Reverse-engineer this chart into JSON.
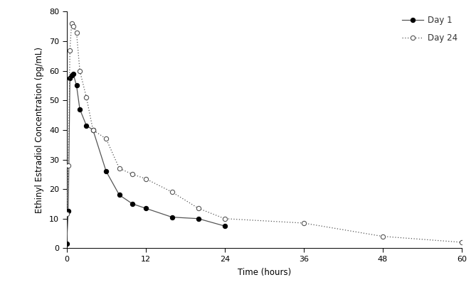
{
  "day1_x": [
    0,
    0.25,
    0.5,
    0.75,
    1.0,
    1.5,
    2.0,
    3.0,
    4.0,
    6.0,
    8.0,
    10.0,
    12.0,
    16.0,
    20.0,
    24.0
  ],
  "day1_y": [
    1.5,
    12.5,
    57.5,
    58.5,
    59.0,
    55.0,
    47.0,
    41.5,
    40.0,
    26.0,
    18.0,
    15.0,
    13.5,
    10.5,
    10.0,
    7.5
  ],
  "day24_x": [
    0,
    0.25,
    0.5,
    0.75,
    1.0,
    1.5,
    2.0,
    3.0,
    4.0,
    6.0,
    8.0,
    10.0,
    12.0,
    16.0,
    20.0,
    24.0,
    36.0,
    48.0,
    60.0
  ],
  "day24_y": [
    11.5,
    28.0,
    67.0,
    76.0,
    75.0,
    73.0,
    60.0,
    51.0,
    40.0,
    37.0,
    27.0,
    25.0,
    23.5,
    19.0,
    13.5,
    10.0,
    8.5,
    4.0,
    2.0
  ],
  "xlabel": "Time (hours)",
  "ylabel": "Ethinyl Estradiol Concentration (pg/mL)",
  "day1_label": "Day 1",
  "day24_label": "Day 24",
  "xlim": [
    0,
    60
  ],
  "ylim": [
    0,
    80
  ],
  "xticks": [
    0,
    12,
    24,
    36,
    48,
    60
  ],
  "yticks": [
    0,
    10,
    20,
    30,
    40,
    50,
    60,
    70,
    80
  ],
  "line_color": "#555555",
  "bg_color": "#ffffff",
  "linewidth": 0.9,
  "markersize": 4.5,
  "tick_fontsize": 8,
  "label_fontsize": 8.5,
  "legend_fontsize": 8.5
}
